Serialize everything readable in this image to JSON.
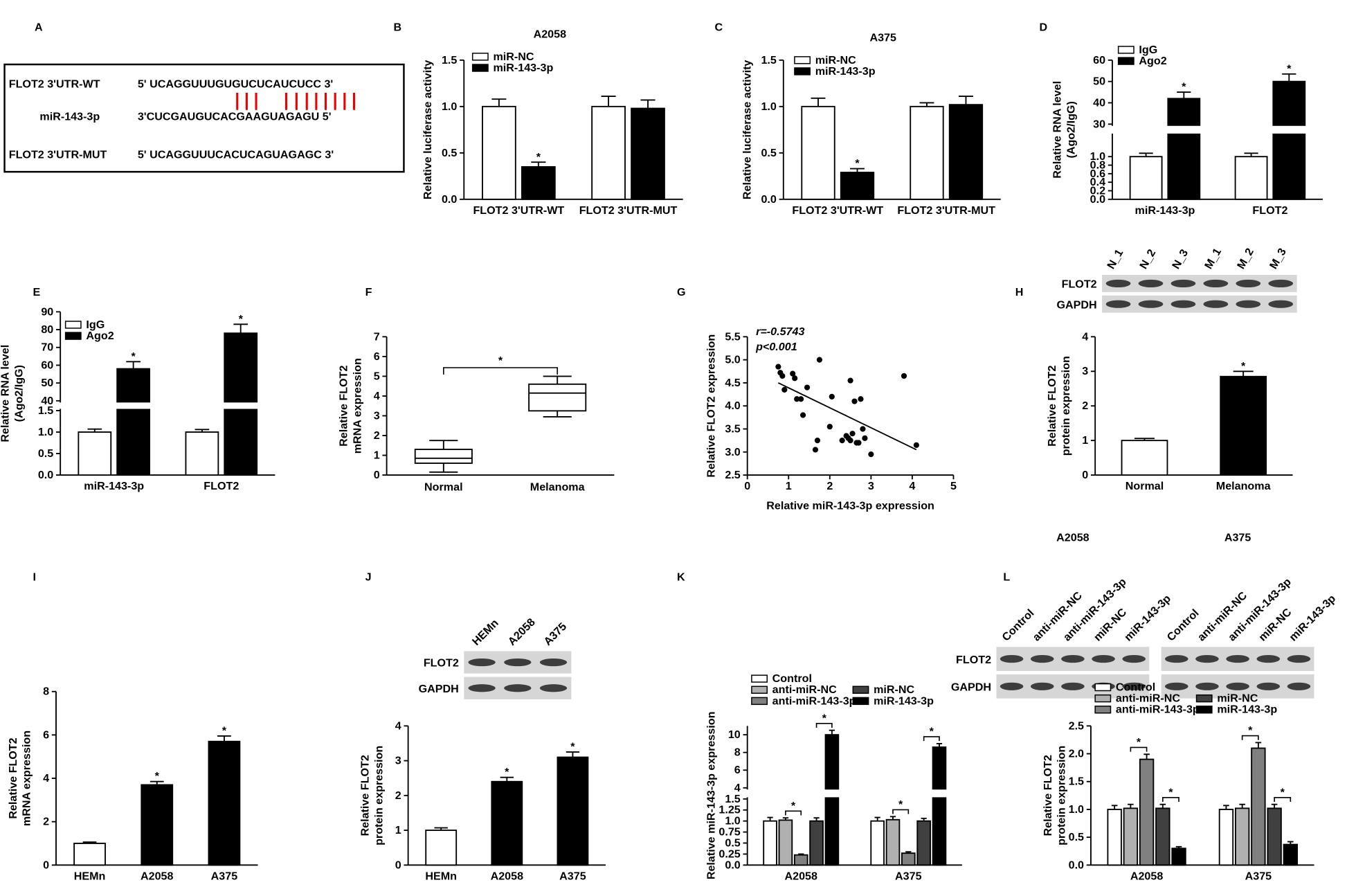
{
  "chart_data": [
    {
      "type": "sequence",
      "panel": "A",
      "rows": [
        {
          "label": "FLOT2 3'UTR-WT",
          "sequence": "5' UCAGGUUUGUGUCUCAUCUCC 3'"
        },
        {
          "label": "miR-143-3p",
          "sequence": "3'CUCGAUGUCACGAAGUAGAGU 5'"
        },
        {
          "label": "FLOT2 3'UTR-MUT",
          "sequence": "5' UCAGGUUUCACUCAGUAGAGC  3'"
        }
      ]
    },
    {
      "type": "bar",
      "panel": "B",
      "title": "A2058",
      "ylabel": [
        "Relative luciferase activity"
      ],
      "categories": [
        "FLOT2 3'UTR-WT",
        "FLOT2 3'UTR-MUT"
      ],
      "series": [
        {
          "name": "miR-NC",
          "color": "#ffffff",
          "values": [
            1.0,
            1.0
          ],
          "errors": [
            0.08,
            0.11
          ],
          "sig": [
            false,
            false
          ]
        },
        {
          "name": "miR-143-3p",
          "color": "#000000",
          "values": [
            0.35,
            0.98
          ],
          "errors": [
            0.05,
            0.09
          ],
          "sig": [
            true,
            false
          ]
        }
      ],
      "sig_marker": "*",
      "ylim": [
        0,
        1.5
      ],
      "yticks": [
        {
          "value": 0,
          "label": "0.0"
        },
        0.5,
        {
          "value": 1,
          "label": "1.0"
        },
        1.5
      ]
    },
    {
      "type": "bar",
      "panel": "C",
      "title": "A375",
      "ylabel": [
        "Relative luciferase activity"
      ],
      "categories": [
        "FLOT2 3'UTR-WT",
        "FLOT2 3'UTR-MUT"
      ],
      "series": [
        {
          "name": "miR-NC",
          "color": "#ffffff",
          "values": [
            1.0,
            1.0
          ],
          "errors": [
            0.09,
            0.04
          ],
          "sig": [
            false,
            false
          ]
        },
        {
          "name": "miR-143-3p",
          "color": "#000000",
          "values": [
            0.29,
            1.02
          ],
          "errors": [
            0.04,
            0.09
          ],
          "sig": [
            true,
            false
          ]
        }
      ],
      "sig_marker": "*",
      "ylim": [
        0,
        1.5
      ],
      "yticks": [
        {
          "value": 0,
          "label": "0.0"
        },
        0.5,
        {
          "value": 1,
          "label": "1.0"
        },
        1.5
      ]
    },
    {
      "type": "bar",
      "panel": "D",
      "ylabel": [
        "Relative RNA level",
        "(Ago2/IgG)"
      ],
      "categories": [
        "miR-143-3p",
        "FLOT2"
      ],
      "series": [
        {
          "name": "IgG",
          "color": "#ffffff",
          "values": [
            1.0,
            1.0
          ],
          "errors": [
            0.08,
            0.08
          ],
          "sig": [
            false,
            false
          ]
        },
        {
          "name": "Ago2",
          "color": "#000000",
          "values": [
            42,
            50
          ],
          "errors": [
            3,
            3.5
          ],
          "sig": [
            true,
            true
          ]
        }
      ],
      "sig_marker": "*",
      "ylim": [
        0,
        60
      ],
      "ybreak": [
        1.5,
        30
      ],
      "yticks": [
        {
          "value": 0,
          "label": "0.0"
        },
        0.2,
        0.4,
        0.6,
        0.8,
        {
          "value": 1,
          "label": "1.0"
        },
        30,
        40,
        50,
        60
      ]
    },
    {
      "type": "bar",
      "panel": "E",
      "ylabel": [
        "Relative RNA level",
        "(Ago2/IgG)"
      ],
      "categories": [
        "miR-143-3p",
        "FLOT2"
      ],
      "series": [
        {
          "name": "IgG",
          "color": "#ffffff",
          "values": [
            1.0,
            1.0
          ],
          "errors": [
            0.07,
            0.06
          ],
          "sig": [
            false,
            false
          ]
        },
        {
          "name": "Ago2",
          "color": "#000000",
          "values": [
            58,
            78
          ],
          "errors": [
            4,
            5
          ],
          "sig": [
            true,
            true
          ]
        }
      ],
      "sig_marker": "*",
      "ylim": [
        0,
        90
      ],
      "ybreak": [
        1.5,
        40
      ],
      "yticks": [
        {
          "value": 0,
          "label": "0.0"
        },
        0.5,
        {
          "value": 1,
          "label": "1.0"
        },
        1.5,
        40,
        50,
        60,
        70,
        80,
        90
      ]
    },
    {
      "type": "box",
      "panel": "F",
      "ylabel": [
        "Relative FLOT2",
        "mRNA expression"
      ],
      "categories": [
        "Normal",
        "Melanoma"
      ],
      "boxes": [
        {
          "min": 0.15,
          "q1": 0.6,
          "median": 0.85,
          "q3": 1.3,
          "max": 1.75
        },
        {
          "min": 2.95,
          "q1": 3.25,
          "median": 4.15,
          "q3": 4.6,
          "max": 5.0
        }
      ],
      "sig_marker": "*",
      "ylim": [
        0,
        7
      ],
      "yticks": [
        0,
        1,
        2,
        3,
        4,
        5,
        6,
        7
      ]
    },
    {
      "type": "scatter",
      "panel": "G",
      "ylabel": [
        "Relative FLOT2 expression"
      ],
      "xlabel": "Relative miR-143-3p expression",
      "annotations": [
        "r=-0.5743",
        "p<0.001"
      ],
      "x": [
        0.75,
        0.8,
        0.85,
        0.9,
        1.1,
        1.15,
        1.2,
        1.3,
        1.35,
        1.45,
        1.65,
        1.7,
        1.75,
        2.0,
        2.05,
        2.3,
        2.4,
        2.45,
        2.5,
        2.55,
        2.6,
        2.65,
        2.7,
        2.75,
        2.8,
        2.85,
        3.0,
        3.8,
        4.1,
        2.5
      ],
      "y": [
        4.85,
        4.72,
        4.65,
        4.35,
        4.7,
        4.6,
        4.15,
        4.15,
        3.8,
        4.4,
        3.05,
        3.25,
        5.0,
        3.55,
        4.2,
        3.25,
        3.35,
        3.3,
        4.55,
        3.4,
        4.1,
        3.2,
        3.2,
        4.15,
        3.5,
        3.3,
        2.95,
        4.65,
        3.15,
        3.25
      ],
      "fit": {
        "x": [
          0.75,
          4.1
        ],
        "y": [
          4.5,
          3.05
        ]
      },
      "xlim": [
        0,
        5
      ],
      "xticks": [
        0,
        1,
        2,
        3,
        4,
        5
      ],
      "ylim": [
        2.5,
        5.5
      ],
      "yticks": [
        2.5,
        {
          "value": 3,
          "label": "3.0"
        },
        3.5,
        {
          "value": 4,
          "label": "4.0"
        },
        4.5,
        {
          "value": 5,
          "label": "5.0"
        },
        5.5
      ]
    },
    {
      "type": "bar",
      "panel": "H",
      "ylabel": [
        "Relative FLOT2",
        "protein expression"
      ],
      "blot": {
        "rows": [
          "FLOT2",
          "GAPDH"
        ],
        "groups": [
          {
            "lanes": [
              "N_1",
              "N_2",
              "N_3",
              "M_1",
              "M_2",
              "M_3"
            ]
          }
        ]
      },
      "categories": [
        "Normal",
        "Melanoma"
      ],
      "values": [
        1.0,
        2.85
      ],
      "errors": [
        0.06,
        0.15
      ],
      "colors": [
        "#ffffff",
        "#000000"
      ],
      "sig": [
        false,
        true
      ],
      "sig_marker": "*",
      "ylim": [
        0,
        4
      ],
      "yticks": [
        0,
        1,
        2,
        3,
        4
      ]
    },
    {
      "type": "bar",
      "panel": "I",
      "ylabel": [
        "Relative FLOT2",
        "mRNA expression"
      ],
      "categories": [
        "HEMn",
        "A2058",
        "A375"
      ],
      "values": [
        1.0,
        3.7,
        5.7
      ],
      "errors": [
        0.06,
        0.15,
        0.25
      ],
      "colors": [
        "#ffffff",
        "#000000",
        "#000000"
      ],
      "sig": [
        false,
        true,
        true
      ],
      "sig_marker": "*",
      "ylim": [
        0,
        8
      ],
      "yticks": [
        0,
        2,
        4,
        6,
        8
      ]
    },
    {
      "type": "bar",
      "panel": "J",
      "ylabel": [
        "Relative FLOT2",
        "protein expression"
      ],
      "blot": {
        "rows": [
          "FLOT2",
          "GAPDH"
        ],
        "groups": [
          {
            "lanes": [
              "HEMn",
              "A2058",
              "A375"
            ]
          }
        ]
      },
      "categories": [
        "HEMn",
        "A2058",
        "A375"
      ],
      "values": [
        1.0,
        2.4,
        3.1
      ],
      "errors": [
        0.07,
        0.12,
        0.15
      ],
      "colors": [
        "#ffffff",
        "#000000",
        "#000000"
      ],
      "sig": [
        false,
        true,
        true
      ],
      "sig_marker": "*",
      "ylim": [
        0,
        4
      ],
      "yticks": [
        0,
        1,
        2,
        3,
        4
      ]
    },
    {
      "type": "bar",
      "panel": "K",
      "ylabel": [
        "Relative miR-143-3p expression"
      ],
      "categories": [
        "A2058",
        "A375"
      ],
      "series": [
        {
          "name": "Control",
          "color": "#ffffff",
          "values": [
            1.0,
            1.0
          ],
          "errors": [
            0.08,
            0.08
          ]
        },
        {
          "name": "anti-miR-NC",
          "color": "#b0b0b0",
          "values": [
            1.02,
            1.03
          ],
          "errors": [
            0.05,
            0.07
          ]
        },
        {
          "name": "anti-miR-143-3p",
          "color": "#808080",
          "values": [
            0.23,
            0.27
          ],
          "errors": [
            0.02,
            0.03
          ]
        },
        {
          "name": "miR-NC",
          "color": "#404040",
          "values": [
            1.0,
            1.0
          ],
          "errors": [
            0.07,
            0.06
          ]
        },
        {
          "name": "miR-143-3p",
          "color": "#000000",
          "values": [
            10.0,
            8.6
          ],
          "errors": [
            0.5,
            0.4
          ]
        }
      ],
      "comparisons": [
        [
          1,
          2
        ],
        [
          3,
          4
        ]
      ],
      "sig_marker": "*",
      "ylim": [
        0,
        11
      ],
      "ybreak": [
        1.5,
        4
      ],
      "yticks": [
        {
          "value": 0,
          "label": "0.0"
        },
        0.25,
        0.5,
        0.75,
        {
          "value": 1,
          "label": "1.0"
        },
        1.25,
        1.5,
        4,
        6,
        8,
        10
      ]
    },
    {
      "type": "bar",
      "panel": "L",
      "ylabel": [
        "Relative FLOT2",
        "protein expression"
      ],
      "blot": {
        "rows": [
          "FLOT2",
          "GAPDH"
        ],
        "groups": [
          {
            "name": "A2058",
            "lanes": [
              "Control",
              "anti-miR-NC",
              "anti-miR-143-3p",
              "miR-NC",
              "miR-143-3p"
            ]
          },
          {
            "name": "A375",
            "lanes": [
              "Control",
              "anti-miR-NC",
              "anti-miR-143-3p",
              "miR-NC",
              "miR-143-3p"
            ]
          }
        ]
      },
      "categories": [
        "A2058",
        "A375"
      ],
      "series": [
        {
          "name": "Control",
          "color": "#ffffff",
          "values": [
            1.0,
            1.0
          ],
          "errors": [
            0.07,
            0.07
          ]
        },
        {
          "name": "anti-miR-NC",
          "color": "#b0b0b0",
          "values": [
            1.02,
            1.02
          ],
          "errors": [
            0.07,
            0.07
          ]
        },
        {
          "name": "anti-miR-143-3p",
          "color": "#808080",
          "values": [
            1.9,
            2.1
          ],
          "errors": [
            0.09,
            0.1
          ]
        },
        {
          "name": "miR-NC",
          "color": "#404040",
          "values": [
            1.02,
            1.02
          ],
          "errors": [
            0.07,
            0.07
          ]
        },
        {
          "name": "miR-143-3p",
          "color": "#000000",
          "values": [
            0.3,
            0.37
          ],
          "errors": [
            0.03,
            0.05
          ]
        }
      ],
      "comparisons": [
        [
          1,
          2
        ],
        [
          3,
          4
        ]
      ],
      "sig_marker": "*",
      "ylim": [
        0,
        2.5
      ],
      "yticks": [
        {
          "value": 0,
          "label": "0.0"
        },
        0.5,
        {
          "value": 1,
          "label": "1.0"
        },
        1.5,
        {
          "value": 2,
          "label": "2.0"
        },
        2.5
      ]
    }
  ]
}
